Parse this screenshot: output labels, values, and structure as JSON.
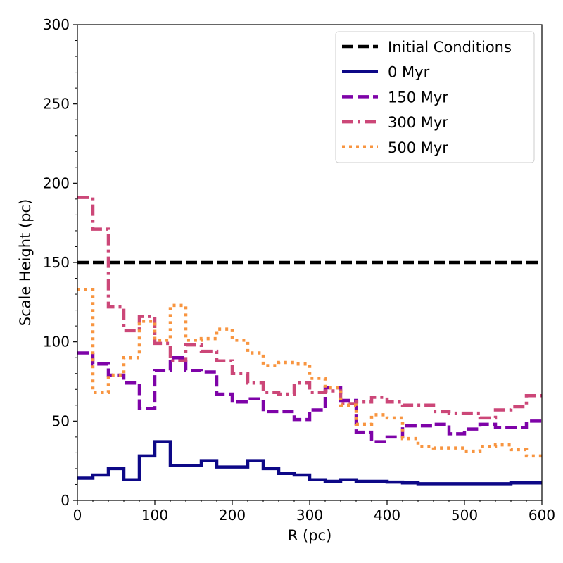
{
  "chart_data": {
    "type": "line",
    "xlabel": "R (pc)",
    "ylabel": "Scale Height (pc)",
    "xlim": [
      0,
      600
    ],
    "ylim": [
      0,
      300
    ],
    "xticks": [
      0,
      100,
      200,
      300,
      400,
      500,
      600
    ],
    "yticks": [
      0,
      50,
      100,
      150,
      200,
      250,
      300
    ],
    "grid": false,
    "legend_position": "top-right",
    "series": [
      {
        "name": "Initial Conditions",
        "style": "dashed",
        "color": "#000000",
        "x": [
          0,
          600
        ],
        "y": [
          150,
          150
        ]
      },
      {
        "name": "0 Myr",
        "style": "solid",
        "color": "#0d0887",
        "bin_edges": [
          0,
          20,
          40,
          60,
          80,
          100,
          120,
          140,
          160,
          180,
          200,
          220,
          240,
          260,
          280,
          300,
          320,
          340,
          360,
          380,
          400,
          420,
          440,
          460,
          480,
          500,
          520,
          540,
          560,
          580,
          600
        ],
        "values": [
          14,
          16,
          20,
          13,
          28,
          37,
          22,
          22,
          25,
          21,
          21,
          25,
          20,
          17,
          16,
          13,
          12,
          13,
          12,
          12,
          11.5,
          11,
          10.5,
          10.5,
          10.5,
          10.5,
          10.5,
          10.5,
          11,
          11
        ]
      },
      {
        "name": "150 Myr",
        "style": "dashed",
        "color": "#7e03a8",
        "bin_edges": [
          0,
          20,
          40,
          60,
          80,
          100,
          120,
          140,
          160,
          180,
          200,
          220,
          240,
          260,
          280,
          300,
          320,
          340,
          360,
          380,
          400,
          420,
          440,
          460,
          480,
          500,
          520,
          540,
          560,
          580,
          600
        ],
        "values": [
          93,
          86,
          79,
          74,
          58,
          82,
          90,
          82,
          81,
          67,
          62,
          64,
          56,
          56,
          51,
          57,
          71,
          63,
          43,
          37,
          40,
          47,
          47,
          48,
          42,
          45,
          48,
          46,
          46,
          50
        ]
      },
      {
        "name": "300 Myr",
        "style": "dashdot",
        "color": "#cc4778",
        "bin_edges": [
          0,
          20,
          40,
          60,
          80,
          100,
          120,
          140,
          160,
          180,
          200,
          220,
          240,
          260,
          280,
          300,
          320,
          340,
          360,
          380,
          400,
          420,
          440,
          460,
          480,
          500,
          520,
          540,
          560,
          580,
          600
        ],
        "values": [
          191,
          171,
          122,
          107,
          116,
          99,
          88,
          98,
          94,
          88,
          80,
          74,
          68,
          67,
          74,
          68,
          69,
          61,
          62,
          65,
          62,
          60,
          60,
          56,
          55,
          55,
          52,
          57,
          59,
          66
        ]
      },
      {
        "name": "500 Myr",
        "style": "dotted",
        "color": "#f89540",
        "bin_edges": [
          0,
          20,
          40,
          60,
          80,
          100,
          120,
          140,
          160,
          180,
          200,
          220,
          240,
          260,
          280,
          300,
          320,
          340,
          360,
          380,
          400,
          420,
          440,
          460,
          480,
          500,
          520,
          540,
          560,
          580,
          600
        ],
        "values": [
          133,
          68,
          79,
          90,
          113,
          101,
          123,
          101,
          102,
          108,
          101,
          93,
          85,
          87,
          86,
          77,
          71,
          60,
          48,
          54,
          52,
          39,
          34,
          33,
          33,
          31,
          34,
          35,
          32,
          28
        ]
      }
    ]
  }
}
